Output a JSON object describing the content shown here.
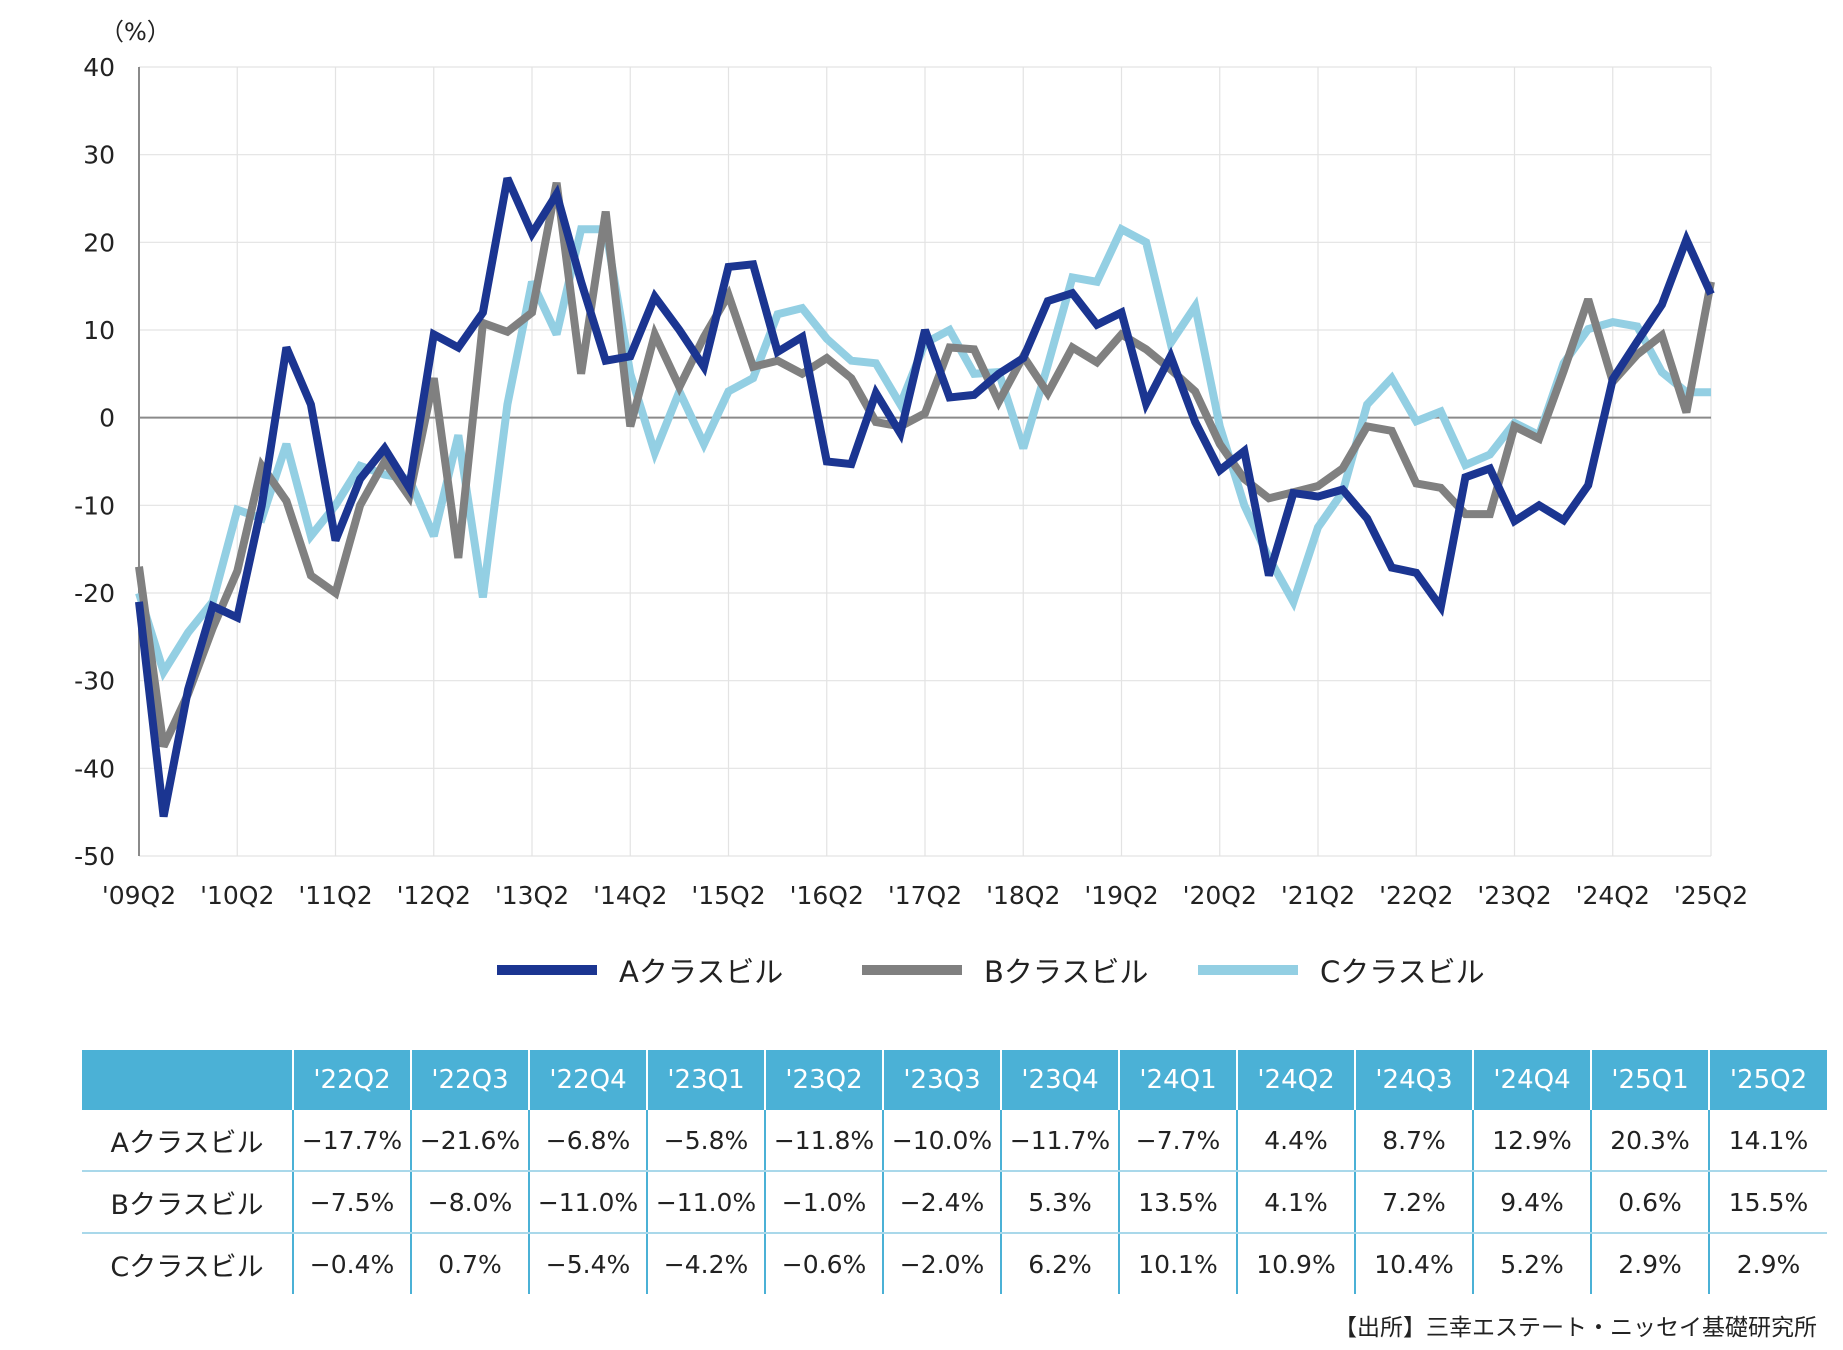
{
  "chart_data": {
    "type": "line",
    "unit_label": "（%）",
    "ylim": [
      -50,
      40
    ],
    "yticks": [
      40,
      30,
      20,
      10,
      0,
      -10,
      -20,
      -30,
      -40,
      -50
    ],
    "xtick_labels": [
      "'09Q2",
      "'10Q2",
      "'11Q2",
      "'12Q2",
      "'13Q2",
      "'14Q2",
      "'15Q2",
      "'16Q2",
      "'17Q2",
      "'18Q2",
      "'19Q2",
      "'20Q2",
      "'21Q2",
      "'22Q2",
      "'23Q2",
      "'24Q2",
      "'25Q2"
    ],
    "x_start": "2009Q2",
    "x_end": "2025Q2",
    "grid": true,
    "legend_position": "bottom",
    "series": [
      {
        "name": "Aクラスビル",
        "color": "#1b3591",
        "values": [
          -21,
          -45.5,
          -31,
          -21.5,
          -22.8,
          -10,
          8,
          1.5,
          -14,
          -7,
          -3.5,
          -8,
          9.5,
          8,
          12,
          27.3,
          21,
          25.5,
          15.5,
          6.5,
          7,
          13.8,
          10,
          5.8,
          17.2,
          17.5,
          7.5,
          9.2,
          -5,
          -5.3,
          2.8,
          -1.8,
          10,
          2.3,
          2.6,
          5,
          6.8,
          13.3,
          14.2,
          10.6,
          12,
          1.6,
          7,
          -0.5,
          -6,
          -3.8,
          -18,
          -8.6,
          -9,
          -8.2,
          -11.5,
          -17.1,
          -17.7,
          -21.6,
          -6.8,
          -5.8,
          -11.8,
          -10,
          -11.7,
          -7.7,
          4.4,
          8.7,
          12.9,
          20.3,
          14.1
        ]
      },
      {
        "name": "Bクラスビル",
        "color": "#808080",
        "values": [
          -17,
          -37.5,
          -31.5,
          -24,
          -17.5,
          -5.5,
          -9.5,
          -18,
          -20,
          -10,
          -5,
          -9,
          4.5,
          -16,
          10.8,
          9.8,
          12,
          26.8,
          5,
          23.5,
          -1,
          9.5,
          3.5,
          9.2,
          14,
          5.8,
          6.5,
          5,
          6.8,
          4.5,
          -0.5,
          -1,
          0.5,
          8,
          7.8,
          1.8,
          7,
          2.8,
          8,
          6.3,
          9.5,
          7.8,
          5.5,
          3,
          -3,
          -7,
          -9.2,
          -8.5,
          -7.8,
          -5.8,
          -1,
          -1.5,
          -7.5,
          -8,
          -11,
          -11,
          -1,
          -2.4,
          5.3,
          13.5,
          4.1,
          7.2,
          9.4,
          0.6,
          15.5
        ]
      },
      {
        "name": "Cクラスビル",
        "color": "#93cfe3",
        "values": [
          -20,
          -29,
          -24.5,
          -21,
          -10.5,
          -11.5,
          -3,
          -13.5,
          -10,
          -5.5,
          -6.5,
          -7,
          -13.5,
          -2,
          -20.5,
          1.5,
          15.5,
          9.5,
          21.5,
          21.5,
          5,
          -4,
          3,
          -3,
          3,
          4.5,
          11.8,
          12.5,
          9,
          6.5,
          6.2,
          1.5,
          8.5,
          10,
          5,
          5.2,
          -3.5,
          6,
          16,
          15.5,
          21.5,
          20,
          8.5,
          12.7,
          -1,
          -10,
          -16,
          -21,
          -12.5,
          -8.5,
          1.5,
          4.5,
          -0.4,
          0.7,
          -5.4,
          -4.2,
          -0.6,
          -2,
          6.2,
          10.1,
          10.9,
          10.4,
          5.2,
          2.9,
          2.9
        ]
      }
    ]
  },
  "table": {
    "headers": [
      "",
      "'22Q2",
      "'22Q3",
      "'22Q4",
      "'23Q1",
      "'23Q2",
      "'23Q3",
      "'23Q4",
      "'24Q1",
      "'24Q2",
      "'24Q3",
      "'24Q4",
      "'25Q1",
      "'25Q2"
    ],
    "rows": [
      {
        "label": "Aクラスビル",
        "cells": [
          "−17.7%",
          "−21.6%",
          "−6.8%",
          "−5.8%",
          "−11.8%",
          "−10.0%",
          "−11.7%",
          "−7.7%",
          "4.4%",
          "8.7%",
          "12.9%",
          "20.3%",
          "14.1%"
        ]
      },
      {
        "label": "Bクラスビル",
        "cells": [
          "−7.5%",
          "−8.0%",
          "−11.0%",
          "−11.0%",
          "−1.0%",
          "−2.4%",
          "5.3%",
          "13.5%",
          "4.1%",
          "7.2%",
          "9.4%",
          "0.6%",
          "15.5%"
        ]
      },
      {
        "label": "Cクラスビル",
        "cells": [
          "−0.4%",
          "0.7%",
          "−5.4%",
          "−4.2%",
          "−0.6%",
          "−2.0%",
          "6.2%",
          "10.1%",
          "10.9%",
          "10.4%",
          "5.2%",
          "2.9%",
          "2.9%"
        ]
      }
    ]
  },
  "source_note": "【出所】三幸エステート・ニッセイ基礎研究所"
}
